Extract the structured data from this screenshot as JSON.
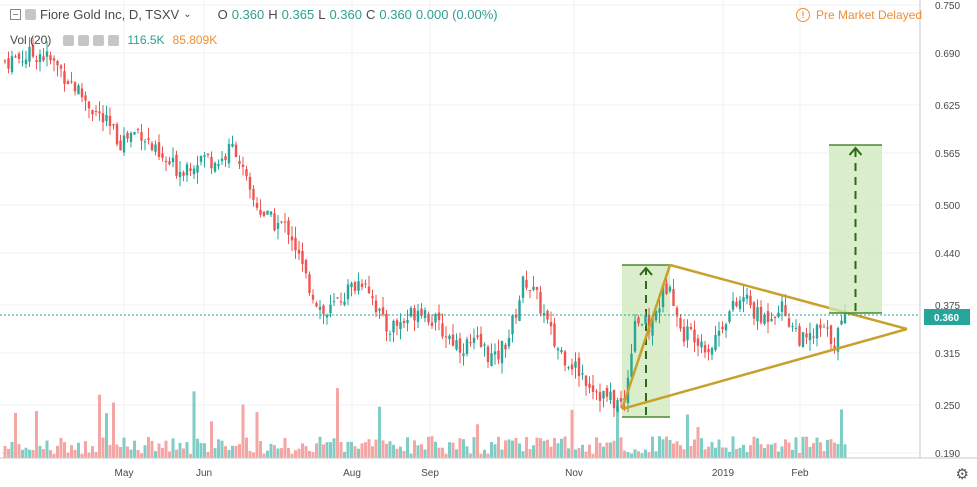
{
  "header": {
    "symbol": "Fiore Gold Inc, D, TSXV",
    "ohlc": [
      {
        "label": "O",
        "value": "0.360"
      },
      {
        "label": "H",
        "value": "0.365"
      },
      {
        "label": "L",
        "value": "0.360"
      },
      {
        "label": "C",
        "value": "0.360"
      }
    ],
    "change": "0.000 (0.00%)",
    "status": "Pre Market Delayed",
    "volume_label": "Vol (20)",
    "volume_value": "116.5K",
    "volume_ma": "85.809K"
  },
  "colors": {
    "up": "#26a69a",
    "down": "#ef5350",
    "vol_up": "#7fcdc5",
    "vol_down": "#f4a6a4",
    "pattern": "#c8a12a",
    "projection_fill": "#cfe8b9",
    "projection_edge": "#4b8a2d",
    "last_price_bg": "#26a69a",
    "status": "#ef8e34"
  },
  "chart_data": {
    "type": "candlestick",
    "price_axis": {
      "ticks": [
        "0.750",
        "0.690",
        "0.625",
        "0.565",
        "0.500",
        "0.440",
        "0.375",
        "0.315",
        "0.250",
        "0.190"
      ],
      "last_price": "0.360"
    },
    "time_axis": {
      "labels": [
        "May",
        "Jun",
        "Aug",
        "Sep",
        "Nov",
        "2019",
        "Feb"
      ]
    },
    "annotations": {
      "triangle": {
        "apex_price": 0.345,
        "upper_start": 0.425,
        "lower_start": 0.245
      },
      "projection_left": {
        "low": 0.235,
        "high": 0.425
      },
      "projection_right": {
        "low": 0.365,
        "high": 0.575
      }
    }
  }
}
